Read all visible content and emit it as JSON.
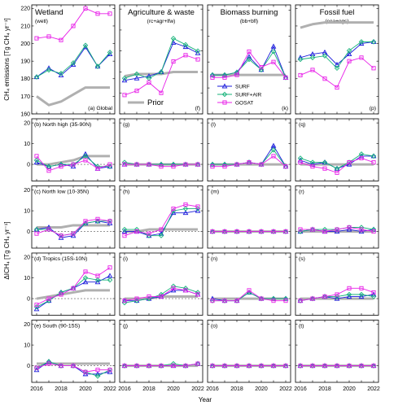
{
  "colors": {
    "surf": "#1a1adb",
    "surf_air": "#17b37a",
    "gosat": "#e820e8",
    "prior": "#b0b0b0",
    "zero_line": "#555555"
  },
  "chart_data": {
    "type": "line",
    "x": [
      2016,
      2017,
      2018,
      2019,
      2020,
      2021,
      2022
    ],
    "xlabel": "Year",
    "xticks": [
      "2016",
      "2018",
      "2020",
      "2022"
    ],
    "ylabel_top": "CH₄ emissions [Tg CH₄ yr⁻¹]",
    "ylabel_bottom": "ΔICH₄ [Tg CH₄ yr⁻¹]",
    "legend": {
      "placement": "bottom-right of panel (f)",
      "entries": [
        "SURF",
        "SURF+AIR",
        "GOSAT"
      ],
      "prior_label": "Prior"
    },
    "columns": [
      {
        "title": "Wetland",
        "subtitle": "(wetl)"
      },
      {
        "title": "Agriculture & waste",
        "subtitle": "(rc+agr+lfw)"
      },
      {
        "title": "Biomass burning",
        "subtitle": "(bb+bfl)"
      },
      {
        "title": "Fossil fuel",
        "subtitle": "(coa+ogs)"
      }
    ],
    "rows": [
      {
        "region": "Global",
        "panels": [
          {
            "label": "(a) Global",
            "ylim": [
              160,
              222
            ],
            "yticks": [
              160,
              170,
              180,
              190,
              200,
              210,
              220
            ],
            "series": {
              "SURF": [
                181,
                186,
                182,
                188,
                198,
                187,
                194
              ],
              "SURF+AIR": [
                181,
                185,
                183,
                189,
                199,
                187,
                195
              ],
              "GOSAT": [
                203,
                204,
                202,
                210,
                220,
                217,
                217
              ],
              "Prior": [
                170,
                165,
                167,
                171,
                175,
                175,
                175
              ]
            }
          },
          {
            "label": "(f)",
            "ylim": [
              220,
              272
            ],
            "yticks": [
              220,
              230,
              240,
              250,
              260,
              270
            ],
            "series": {
              "SURF": [
                236,
                237,
                238,
                240,
                254,
                252,
                249
              ],
              "SURF+AIR": [
                237,
                239,
                237,
                240,
                256,
                253,
                250
              ],
              "GOSAT": [
                229,
                231,
                235,
                230,
                245,
                248,
                246
              ],
              "Prior": [
                238,
                239,
                239,
                239,
                240,
                240,
                240
              ]
            }
          },
          {
            "label": "(k)",
            "ylim": [
              10,
              52
            ],
            "yticks": [
              10,
              20,
              30,
              40,
              50
            ],
            "series": {
              "SURF": [
                25,
                25,
                26,
                32,
                27,
                36,
                24
              ],
              "SURF+AIR": [
                25,
                25,
                26,
                31,
                27,
                34,
                24
              ],
              "GOSAT": [
                24,
                24,
                25,
                34,
                28,
                30,
                24
              ],
              "Prior": [
                25,
                25,
                25,
                25,
                25,
                25,
                25
              ]
            }
          },
          {
            "label": "(p)",
            "ylim": [
              70,
              132
            ],
            "yticks": [
              70,
              80,
              90,
              100,
              110,
              120,
              130
            ],
            "series": {
              "SURF": [
                102,
                104,
                105,
                98,
                104,
                110,
                111
              ],
              "SURF+AIR": [
                101,
                102,
                103,
                96,
                106,
                111,
                111
              ],
              "GOSAT": [
                92,
                95,
                90,
                85,
                100,
                102,
                96
              ],
              "Prior": [
                119,
                121,
                122,
                122,
                122,
                122,
                122
              ]
            }
          }
        ]
      },
      {
        "region": "North high",
        "panels": [
          {
            "label": "(b) North high (35-90N)",
            "ylim": [
              -8,
              22
            ],
            "series": {
              "SURF": [
                1,
                -1,
                0,
                -1,
                5,
                -2,
                -1
              ],
              "SURF+AIR": [
                2,
                -1,
                0,
                0,
                4,
                -1,
                -1
              ],
              "GOSAT": [
                4,
                -3,
                -1,
                0,
                2,
                -2,
                0
              ],
              "Prior": [
                0,
                0,
                1,
                2,
                4,
                4,
                4
              ]
            }
          },
          {
            "label": "(g)",
            "ylim": [
              -8,
              22
            ],
            "series": {
              "SURF": [
                0,
                0,
                0,
                0,
                0,
                0,
                0
              ],
              "SURF+AIR": [
                1,
                0,
                0,
                0,
                0,
                0,
                0
              ],
              "GOSAT": [
                0,
                0,
                0,
                -1,
                -1,
                0,
                0
              ],
              "Prior": [
                0,
                0,
                0,
                0,
                0,
                0,
                0
              ]
            }
          },
          {
            "label": "(l)",
            "ylim": [
              -8,
              22
            ],
            "series": {
              "SURF": [
                0,
                0,
                0,
                1,
                0,
                9,
                -1
              ],
              "SURF+AIR": [
                0,
                0,
                0,
                1,
                0,
                7,
                -1
              ],
              "GOSAT": [
                -1,
                -1,
                0,
                1,
                0,
                4,
                -1
              ],
              "Prior": [
                0,
                0,
                0,
                0,
                0,
                0,
                0
              ]
            }
          },
          {
            "label": "(q)",
            "ylim": [
              -8,
              22
            ],
            "series": {
              "SURF": [
                2,
                0,
                1,
                -2,
                0,
                4,
                4
              ],
              "SURF+AIR": [
                3,
                1,
                1,
                -2,
                1,
                5,
                4
              ],
              "GOSAT": [
                1,
                -1,
                -2,
                -4,
                1,
                3,
                1
              ],
              "Prior": [
                0,
                0,
                0,
                0,
                0,
                0,
                0
              ]
            }
          }
        ]
      },
      {
        "region": "North low",
        "panels": [
          {
            "label": "(c) North low (10-35N)",
            "ylim": [
              -8,
              22
            ],
            "series": {
              "SURF": [
                1,
                2,
                -3,
                -2,
                4,
                5,
                4
              ],
              "SURF+AIR": [
                1,
                1,
                -2,
                -1,
                4,
                5,
                5
              ],
              "GOSAT": [
                -1,
                1,
                -2,
                -1,
                5,
                6,
                5
              ],
              "Prior": [
                2,
                2,
                2,
                3,
                3,
                3,
                3
              ]
            }
          },
          {
            "label": "(h)",
            "ylim": [
              -8,
              22
            ],
            "series": {
              "SURF": [
                0,
                0,
                -2,
                -1,
                9,
                9,
                10
              ],
              "SURF+AIR": [
                1,
                1,
                -2,
                -2,
                10,
                11,
                11
              ],
              "GOSAT": [
                -2,
                0,
                -1,
                1,
                11,
                13,
                12
              ],
              "Prior": [
                0,
                0,
                1,
                1,
                1,
                1,
                1
              ]
            }
          },
          {
            "label": "(m)",
            "ylim": [
              -8,
              22
            ],
            "series": {
              "SURF": [
                0,
                0,
                0,
                0,
                0,
                0,
                0
              ],
              "SURF+AIR": [
                0,
                0,
                0,
                0,
                0,
                0,
                0
              ],
              "GOSAT": [
                0,
                0,
                0,
                0,
                0,
                0,
                0
              ],
              "Prior": [
                0,
                0,
                0,
                0,
                0,
                0,
                0
              ]
            }
          },
          {
            "label": "(r)",
            "ylim": [
              -8,
              22
            ],
            "series": {
              "SURF": [
                0,
                1,
                0,
                0,
                1,
                0,
                1
              ],
              "SURF+AIR": [
                0,
                1,
                1,
                1,
                2,
                2,
                1
              ],
              "GOSAT": [
                1,
                1,
                0,
                1,
                2,
                1,
                0
              ],
              "Prior": [
                0,
                0,
                0,
                0,
                0,
                0,
                0
              ]
            }
          }
        ]
      },
      {
        "region": "Tropics",
        "panels": [
          {
            "label": "(d) Tropics (15S-10N)",
            "ylim": [
              -8,
              22
            ],
            "series": {
              "SURF": [
                -5,
                -1,
                3,
                5,
                8,
                8,
                11
              ],
              "SURF+AIR": [
                -4,
                -1,
                3,
                5,
                10,
                9,
                9
              ],
              "GOSAT": [
                -3,
                0,
                2,
                5,
                13,
                11,
                15
              ],
              "Prior": [
                0,
                1,
                2,
                3,
                4,
                4,
                4
              ]
            }
          },
          {
            "label": "(i)",
            "ylim": [
              -8,
              22
            ],
            "series": {
              "SURF": [
                -1,
                -1,
                0,
                1,
                4,
                4,
                2
              ],
              "SURF+AIR": [
                -2,
                -1,
                0,
                2,
                6,
                5,
                3
              ],
              "GOSAT": [
                -1,
                0,
                1,
                1,
                5,
                4,
                2
              ],
              "Prior": [
                0,
                0,
                0,
                1,
                1,
                1,
                1
              ]
            }
          },
          {
            "label": "(n)",
            "ylim": [
              -8,
              22
            ],
            "series": {
              "SURF": [
                0,
                -1,
                -1,
                3,
                0,
                0,
                0
              ],
              "SURF+AIR": [
                -1,
                -1,
                -1,
                3,
                0,
                0,
                0
              ],
              "GOSAT": [
                -1,
                -1,
                -1,
                4,
                0,
                -1,
                -1
              ],
              "Prior": [
                0,
                0,
                0,
                0,
                0,
                0,
                0
              ]
            }
          },
          {
            "label": "(s)",
            "ylim": [
              -8,
              22
            ],
            "series": {
              "SURF": [
                -1,
                0,
                1,
                0,
                1,
                1,
                2
              ],
              "SURF+AIR": [
                -1,
                0,
                1,
                1,
                2,
                2,
                1
              ],
              "GOSAT": [
                -1,
                0,
                1,
                2,
                5,
                5,
                3
              ],
              "Prior": [
                0,
                0,
                0,
                0,
                0,
                0,
                0
              ]
            }
          }
        ]
      },
      {
        "region": "South",
        "panels": [
          {
            "label": "(e) South (90-15S)",
            "ylim": [
              -8,
              22
            ],
            "series": {
              "SURF": [
                -2,
                2,
                0,
                0,
                -4,
                -4,
                -3
              ],
              "SURF+AIR": [
                -1,
                2,
                0,
                0,
                -3,
                -5,
                -2
              ],
              "GOSAT": [
                -1,
                1,
                0,
                0,
                -3,
                -2,
                -2
              ],
              "Prior": [
                1,
                1,
                1,
                1,
                1,
                1,
                1
              ]
            }
          },
          {
            "label": "(j)",
            "ylim": [
              -8,
              22
            ],
            "series": {
              "SURF": [
                0,
                0,
                0,
                0,
                0,
                0,
                1
              ],
              "SURF+AIR": [
                0,
                0,
                0,
                0,
                1,
                0,
                1
              ],
              "GOSAT": [
                0,
                0,
                0,
                0,
                0,
                0,
                1
              ],
              "Prior": [
                0,
                0,
                0,
                0,
                0,
                0,
                0
              ]
            }
          },
          {
            "label": "(o)",
            "ylim": [
              -8,
              22
            ],
            "series": {
              "SURF": [
                0,
                0,
                0,
                0,
                0,
                0,
                0
              ],
              "SURF+AIR": [
                0,
                0,
                0,
                0,
                0,
                0,
                0
              ],
              "GOSAT": [
                0,
                0,
                0,
                0,
                0,
                0,
                0
              ],
              "Prior": [
                0,
                0,
                0,
                0,
                0,
                0,
                0
              ]
            }
          },
          {
            "label": "(t)",
            "ylim": [
              -8,
              22
            ],
            "series": {
              "SURF": [
                0,
                0,
                0,
                0,
                0,
                0,
                0
              ],
              "SURF+AIR": [
                0,
                0,
                0,
                0,
                0,
                0,
                0
              ],
              "GOSAT": [
                0,
                0,
                0,
                0,
                0,
                0,
                0
              ],
              "Prior": [
                0,
                0,
                0,
                0,
                0,
                0,
                0
              ]
            }
          }
        ]
      }
    ],
    "small_yticks": [
      0,
      10,
      20
    ]
  }
}
